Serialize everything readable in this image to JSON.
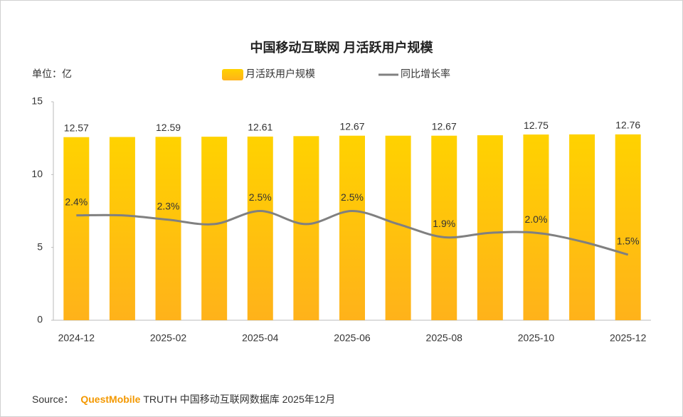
{
  "chart_data": {
    "type": "bar",
    "title": "中国移动互联网 月活跃用户规模",
    "y_label": "单位：亿",
    "categories": [
      "2024-12",
      null,
      "2025-02",
      null,
      "2025-04",
      null,
      "2025-06",
      null,
      "2025-08",
      null,
      "2025-10",
      null,
      "2025-12"
    ],
    "series": [
      {
        "name": "月活跃用户规模",
        "type": "bar",
        "color": "#FFC400",
        "values": [
          12.57,
          12.58,
          12.59,
          12.6,
          12.61,
          12.64,
          12.67,
          12.67,
          12.67,
          12.7,
          12.75,
          12.76,
          12.76
        ],
        "value_labels": [
          "12.57",
          null,
          "12.59",
          null,
          "12.61",
          null,
          "12.67",
          null,
          "12.67",
          null,
          "12.75",
          null,
          "12.76"
        ]
      },
      {
        "name": "同比增长率",
        "type": "line",
        "axis": "y2",
        "color": "#808080",
        "values": [
          2.4,
          2.4,
          2.3,
          2.2,
          2.5,
          2.2,
          2.5,
          2.2,
          1.9,
          2.0,
          2.0,
          1.8,
          1.5
        ],
        "value_labels": [
          "2.4%",
          null,
          "2.3%",
          null,
          "2.5%",
          null,
          "2.5%",
          null,
          "1.9%",
          null,
          "2.0%",
          null,
          "1.5%"
        ]
      }
    ],
    "ylim": [
      0,
      15
    ],
    "yticks": [
      0,
      5,
      10,
      15
    ],
    "y2lim": [
      0,
      5
    ],
    "grid": false,
    "source": [
      "Source：",
      "QuestMobile",
      "TRUTH 中国移动互联网数据库 2025年12月"
    ]
  }
}
